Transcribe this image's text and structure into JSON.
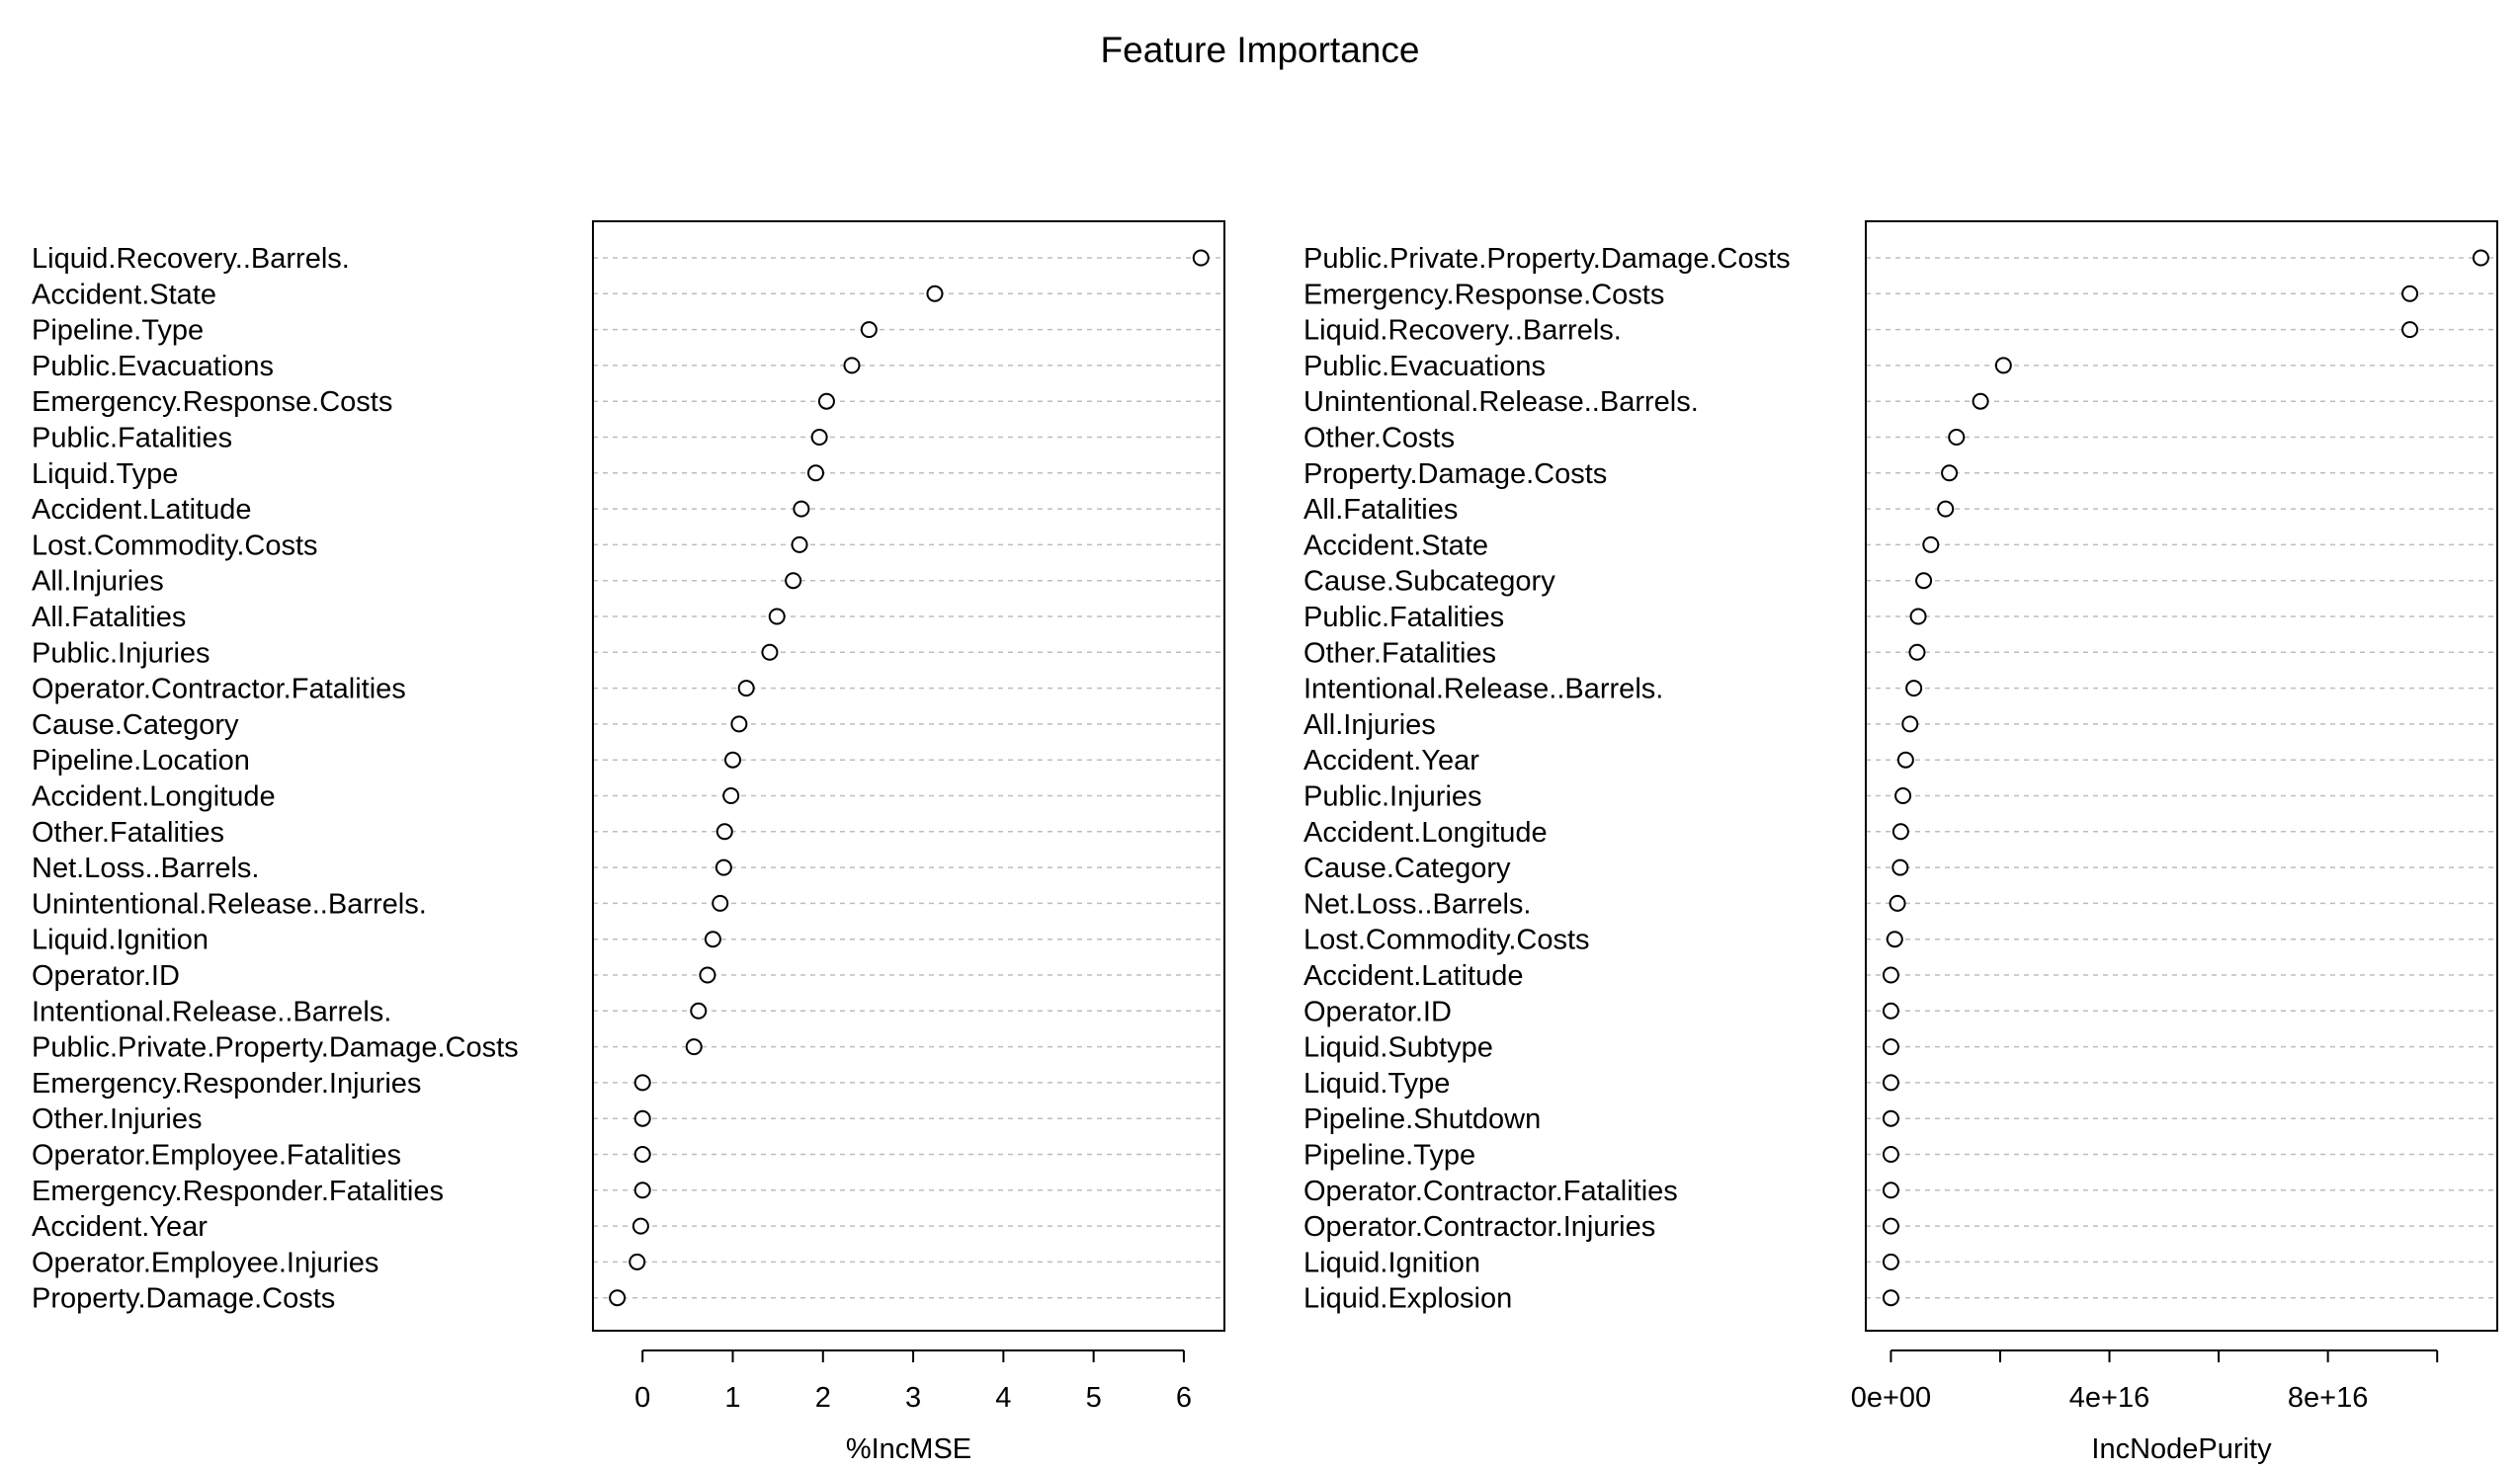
{
  "title": "Feature Importance",
  "chart_data": [
    {
      "type": "scatter",
      "variant": "dotchart",
      "xlabel": "%IncMSE",
      "ylabel": "",
      "xlim": [
        -0.55,
        6.45
      ],
      "ticks": [
        0,
        1,
        2,
        3,
        4,
        5,
        6
      ],
      "tick_labels": [
        "0",
        "1",
        "2",
        "3",
        "4",
        "5",
        "6"
      ],
      "grid": "horizontal dotted",
      "categories": [
        "Liquid.Recovery..Barrels.",
        "Accident.State",
        "Pipeline.Type",
        "Public.Evacuations",
        "Emergency.Response.Costs",
        "Public.Fatalities",
        "Liquid.Type",
        "Accident.Latitude",
        "Lost.Commodity.Costs",
        "All.Injuries",
        "All.Fatalities",
        "Public.Injuries",
        "Operator.Contractor.Fatalities",
        "Cause.Category",
        "Pipeline.Location",
        "Accident.Longitude",
        "Other.Fatalities",
        "Net.Loss..Barrels.",
        "Unintentional.Release..Barrels.",
        "Liquid.Ignition",
        "Operator.ID",
        "Intentional.Release..Barrels.",
        "Public.Private.Property.Damage.Costs",
        "Emergency.Responder.Injuries",
        "Other.Injuries",
        "Operator.Employee.Fatalities",
        "Emergency.Responder.Fatalities",
        "Accident.Year",
        "Operator.Employee.Injuries",
        "Property.Damage.Costs"
      ],
      "values": [
        6.19,
        3.24,
        2.51,
        2.32,
        2.04,
        1.96,
        1.92,
        1.76,
        1.74,
        1.67,
        1.49,
        1.41,
        1.15,
        1.07,
        1.0,
        0.98,
        0.91,
        0.9,
        0.86,
        0.78,
        0.72,
        0.62,
        0.57,
        0.0,
        0.0,
        0.0,
        0.0,
        -0.02,
        -0.06,
        -0.28
      ]
    },
    {
      "type": "scatter",
      "variant": "dotchart",
      "xlabel": "IncNodePurity",
      "ylabel": "",
      "xlim": [
        -4600000000000000.0,
        1.11e+17
      ],
      "ticks": [
        0,
        2e+16,
        4e+16,
        6e+16,
        8e+16,
        1e+17
      ],
      "tick_labels": [
        "0e+00",
        "",
        "4e+16",
        "",
        "8e+16",
        ""
      ],
      "grid": "horizontal dotted",
      "categories": [
        "Public.Private.Property.Damage.Costs",
        "Emergency.Response.Costs",
        "Liquid.Recovery..Barrels.",
        "Public.Evacuations",
        "Unintentional.Release..Barrels.",
        "Other.Costs",
        "Property.Damage.Costs",
        "All.Fatalities",
        "Accident.State",
        "Cause.Subcategory",
        "Public.Fatalities",
        "Other.Fatalities",
        "Intentional.Release..Barrels.",
        "All.Injuries",
        "Accident.Year",
        "Public.Injuries",
        "Accident.Longitude",
        "Cause.Category",
        "Net.Loss..Barrels.",
        "Lost.Commodity.Costs",
        "Accident.Latitude",
        "Operator.ID",
        "Liquid.Subtype",
        "Liquid.Type",
        "Pipeline.Shutdown",
        "Pipeline.Type",
        "Operator.Contractor.Fatalities",
        "Operator.Contractor.Injuries",
        "Liquid.Ignition",
        "Liquid.Explosion"
      ],
      "values": [
        1.08e+17,
        9.5e+16,
        9.5e+16,
        2.06e+16,
        1.64e+16,
        1.2e+16,
        1.07e+16,
        1e+16,
        7300000000000000.0,
        6000000000000000.0,
        5000000000000000.0,
        4800000000000000.0,
        4200000000000000.0,
        3500000000000000.0,
        2700000000000000.0,
        2200000000000000.0,
        1800000000000000.0,
        1700000000000000.0,
        1200000000000000.0,
        700000000000000.0,
        0,
        0,
        0,
        0,
        0,
        0,
        0,
        0,
        0,
        0
      ]
    }
  ]
}
